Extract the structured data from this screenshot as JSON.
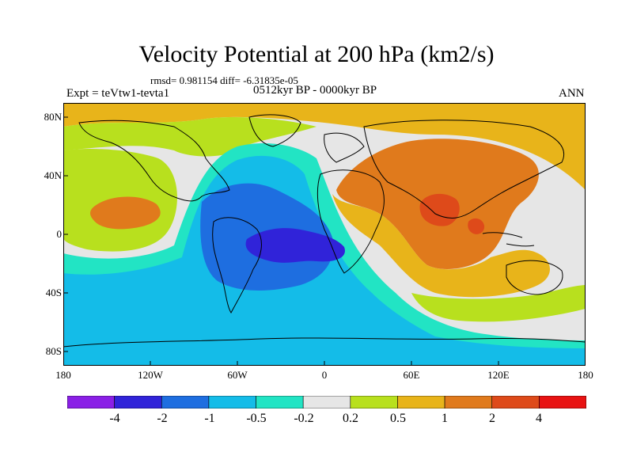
{
  "header": {
    "title": "Velocity Potential at 200 hPa (km2/s)",
    "stats": "rmsd= 0.981154 diff= -6.31835e-05",
    "experiment": "Expt = teVtw1-tevta1",
    "period": "0512kyr BP - 0000kyr BP",
    "season": "ANN"
  },
  "axes": {
    "x_ticks": [
      "180",
      "120W",
      "60W",
      "0",
      "60E",
      "120E",
      "180"
    ],
    "y_ticks": [
      "80N",
      "40N",
      "0",
      "40S",
      "80S"
    ]
  },
  "colorbar": {
    "labels": [
      "-4",
      "-2",
      "-1",
      "-0.5",
      "-0.2",
      "0.2",
      "0.5",
      "1",
      "2",
      "4"
    ],
    "colors": [
      "#8a1fe6",
      "#3023d9",
      "#1e6ee0",
      "#14bce8",
      "#22e4c4",
      "#e6e6e6",
      "#b8e01e",
      "#e8b41a",
      "#e07a1c",
      "#de4a1a",
      "#e81212"
    ]
  },
  "chart_data": {
    "type": "heatmap",
    "title": "Velocity Potential at 200 hPa (km2/s)",
    "xlim": [
      -180,
      180
    ],
    "ylim": [
      -90,
      90
    ],
    "levels": [
      -4,
      -2,
      -1,
      -0.5,
      -0.2,
      0.2,
      0.5,
      1,
      2,
      4
    ],
    "field_summary": [
      {
        "region": "Americas / Atlantic",
        "sign": "negative",
        "min_bin": "-4 to -2",
        "center_lon": -30,
        "center_lat": -5
      },
      {
        "region": "Africa / Asia / Indian Ocean",
        "sign": "positive",
        "max_bin": "2 to 4",
        "center_lon": 80,
        "center_lat": 15
      }
    ]
  }
}
